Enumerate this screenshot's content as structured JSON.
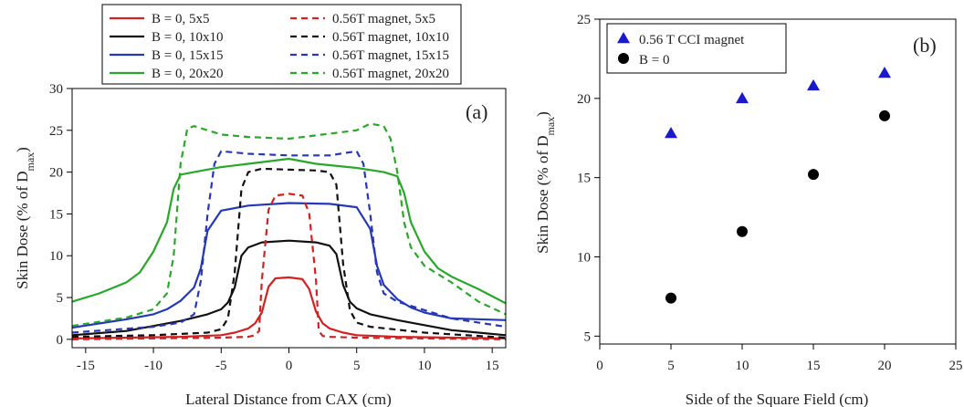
{
  "chart_data": [
    {
      "type": "line",
      "panel_label": "(a)",
      "xlabel": "Lateral Distance from CAX (cm)",
      "ylabel": "Skin Dose (% of D",
      "ylabel_sub": "max",
      "ylabel_close": ")",
      "xlim": [
        -16,
        16
      ],
      "ylim": [
        -1,
        30
      ],
      "xticks": [
        "-15",
        "-10",
        "-5",
        "0",
        "5",
        "10",
        "15"
      ],
      "xtick_values": [
        -15,
        -10,
        -5,
        0,
        5,
        10,
        15
      ],
      "yticks": [
        "0",
        "5",
        "10",
        "15",
        "20",
        "25",
        "30"
      ],
      "ytick_values": [
        0,
        5,
        10,
        15,
        20,
        25,
        30
      ],
      "legend_position": "top",
      "series": [
        {
          "name": "B = 0,  5x5",
          "color": "#d42020",
          "dash": false,
          "x": [
            -16,
            -12,
            -8,
            -5,
            -4,
            -3,
            -2.5,
            -2,
            -1.5,
            -1,
            0,
            1,
            1.5,
            2,
            2.5,
            3,
            4,
            5,
            8,
            12,
            16
          ],
          "y": [
            0.1,
            0.2,
            0.3,
            0.5,
            0.8,
            1.3,
            1.9,
            3.2,
            6.3,
            7.3,
            7.4,
            7.2,
            6.0,
            3.3,
            1.9,
            1.3,
            0.8,
            0.5,
            0.3,
            0.2,
            0.1
          ]
        },
        {
          "name": "B = 0,  10x10",
          "color": "#111111",
          "dash": false,
          "x": [
            -16,
            -12,
            -10,
            -8,
            -6,
            -5,
            -4.5,
            -4,
            -3.5,
            -3,
            -2,
            0,
            2,
            3,
            3.5,
            4,
            4.5,
            5,
            6,
            8,
            10,
            12,
            16
          ],
          "y": [
            0.5,
            1.0,
            1.6,
            2.2,
            3.0,
            3.6,
            4.4,
            6.2,
            10.0,
            11.0,
            11.6,
            11.8,
            11.6,
            11.2,
            10.2,
            6.5,
            4.5,
            3.7,
            3.0,
            2.3,
            1.7,
            1.1,
            0.5
          ]
        },
        {
          "name": "B = 0,  15x15",
          "color": "#2438b8",
          "dash": false,
          "x": [
            -16,
            -12,
            -10,
            -9,
            -8,
            -7,
            -6.5,
            -6,
            -5,
            -3,
            0,
            3,
            5,
            6,
            6.5,
            7,
            8,
            9,
            10,
            12,
            16
          ],
          "y": [
            1.4,
            2.4,
            3.0,
            3.6,
            4.6,
            6.2,
            8.5,
            13.0,
            15.4,
            16.0,
            16.3,
            16.2,
            15.8,
            13.2,
            8.8,
            6.5,
            4.8,
            3.8,
            3.2,
            2.5,
            2.3
          ]
        },
        {
          "name": "B = 0,  20x20",
          "color": "#28a828",
          "dash": false,
          "x": [
            -16,
            -14,
            -12,
            -11,
            -10,
            -9,
            -8.5,
            -8,
            -7,
            -5,
            -3,
            0,
            2,
            5,
            7,
            8,
            8.5,
            9,
            10,
            11,
            12,
            14,
            16
          ],
          "y": [
            4.5,
            5.5,
            6.8,
            8.0,
            10.5,
            14.0,
            18.0,
            19.7,
            20.0,
            20.6,
            21.0,
            21.6,
            21.0,
            20.5,
            20.0,
            19.5,
            17.5,
            14.0,
            10.5,
            8.5,
            7.5,
            6.0,
            4.3
          ]
        },
        {
          "name": "0.56T magnet,  5x5",
          "color": "#d42020",
          "dash": true,
          "x": [
            -16,
            -10,
            -5,
            -3,
            -2.5,
            -2.2,
            -2,
            -1.5,
            -1,
            0,
            1,
            1.5,
            2,
            2.2,
            2.5,
            3,
            5,
            10,
            16
          ],
          "y": [
            0,
            0.1,
            0.2,
            0.3,
            0.5,
            1.0,
            7.0,
            15.5,
            17.2,
            17.4,
            17.2,
            15.0,
            7.0,
            1.0,
            0.4,
            0.3,
            0.2,
            0.1,
            0
          ]
        },
        {
          "name": "0.56T magnet,  10x10",
          "color": "#111111",
          "dash": true,
          "x": [
            -16,
            -10,
            -6,
            -5,
            -4.5,
            -4,
            -3.5,
            -3,
            -2,
            0,
            2,
            3,
            3.5,
            4,
            4.5,
            5,
            6,
            10,
            16
          ],
          "y": [
            0.3,
            0.5,
            0.8,
            1.2,
            2.5,
            8.0,
            18.0,
            20.0,
            20.4,
            20.3,
            20.2,
            20.0,
            18.5,
            9.0,
            3.5,
            2.0,
            1.5,
            0.8,
            0.2
          ]
        },
        {
          "name": "0.56T magnet,  15x15",
          "color": "#2438b8",
          "dash": true,
          "x": [
            -16,
            -10,
            -8,
            -7,
            -6.5,
            -6,
            -5.5,
            -5,
            -3,
            0,
            3,
            5,
            5.5,
            6,
            6.5,
            7,
            8,
            10,
            12,
            16
          ],
          "y": [
            0.8,
            1.5,
            2.0,
            3.0,
            7.0,
            15.0,
            21.0,
            22.5,
            22.2,
            22.0,
            22.0,
            22.5,
            21.0,
            15.0,
            8.0,
            5.5,
            4.5,
            3.5,
            2.5,
            1.5
          ]
        },
        {
          "name": "0.56T magnet,  20x20",
          "color": "#28a828",
          "dash": true,
          "x": [
            -16,
            -12,
            -10,
            -9,
            -8.5,
            -8,
            -7.5,
            -7,
            -5,
            -3,
            0,
            3,
            5,
            6,
            7,
            7.5,
            8,
            8.5,
            9,
            10,
            12,
            14,
            16
          ],
          "y": [
            1.6,
            2.6,
            3.6,
            5.5,
            10.0,
            21.0,
            25.2,
            25.5,
            24.5,
            24.2,
            24.0,
            24.6,
            25.0,
            25.8,
            25.5,
            24.0,
            20.0,
            14.0,
            11.0,
            8.8,
            6.8,
            4.5,
            3.0
          ]
        }
      ]
    },
    {
      "type": "scatter",
      "panel_label": "(b)",
      "xlabel": "Side of the Square Field (cm)",
      "ylabel": "Skin Dose (% of D",
      "ylabel_sub": "max",
      "ylabel_close": ")",
      "xlim": [
        0,
        25
      ],
      "ylim": [
        4.5,
        25
      ],
      "xticks": [
        "0",
        "5",
        "10",
        "15",
        "20",
        "25"
      ],
      "xtick_values": [
        0,
        5,
        10,
        15,
        20,
        25
      ],
      "yticks": [
        "5",
        "10",
        "15",
        "20",
        "25"
      ],
      "ytick_values": [
        5,
        10,
        15,
        20,
        25
      ],
      "legend_position": "top-left",
      "series": [
        {
          "name": "0.56 T CCI magnet",
          "color": "#1a1acc",
          "marker": "triangle",
          "x": [
            5,
            10,
            15,
            20
          ],
          "y": [
            17.8,
            20.0,
            20.8,
            21.6
          ]
        },
        {
          "name": "B = 0",
          "color": "#000000",
          "marker": "circle",
          "x": [
            5,
            10,
            15,
            20
          ],
          "y": [
            7.4,
            11.6,
            15.2,
            18.9
          ]
        }
      ]
    }
  ]
}
